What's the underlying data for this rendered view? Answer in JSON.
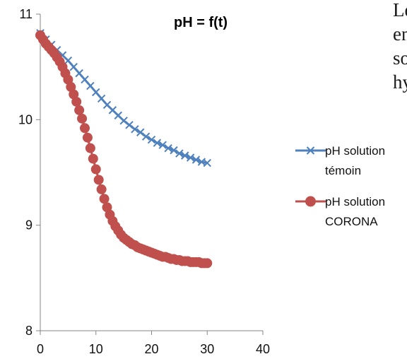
{
  "chart_data": {
    "type": "line",
    "title": "pH = f(t)",
    "xlabel": "",
    "ylabel": "",
    "xlim": [
      0,
      40
    ],
    "ylim": [
      8,
      11
    ],
    "x_ticks": [
      0,
      10,
      20,
      30,
      40
    ],
    "y_ticks": [
      8,
      9,
      10,
      11
    ],
    "grid": false,
    "legend_position": "right",
    "series": [
      {
        "name_lines": [
          "pH solution",
          "témoin"
        ],
        "color": "#4f81bd",
        "marker": "x",
        "x": [
          0,
          1,
          2,
          3,
          4,
          5,
          6,
          7,
          8,
          9,
          10,
          11,
          12,
          13,
          14,
          15,
          16,
          17,
          18,
          19,
          20,
          21,
          22,
          23,
          24,
          25,
          26,
          27,
          28,
          29,
          30
        ],
        "y": [
          10.82,
          10.76,
          10.71,
          10.66,
          10.61,
          10.56,
          10.5,
          10.44,
          10.38,
          10.32,
          10.26,
          10.2,
          10.14,
          10.09,
          10.04,
          9.99,
          9.95,
          9.91,
          9.88,
          9.84,
          9.81,
          9.78,
          9.76,
          9.73,
          9.71,
          9.68,
          9.66,
          9.64,
          9.62,
          9.6,
          9.59
        ]
      },
      {
        "name_lines": [
          "pH solution",
          "CORONA"
        ],
        "color": "#c0504d",
        "marker": "circle",
        "x": [
          0,
          0.5,
          1,
          1.5,
          2,
          2.5,
          3,
          3.5,
          4,
          4.5,
          5,
          5.5,
          6,
          6.5,
          7,
          7.5,
          8,
          8.5,
          9,
          9.5,
          10,
          10.5,
          11,
          11.5,
          12,
          12.5,
          13,
          13.5,
          14,
          14.5,
          15,
          15.5,
          16,
          16.5,
          17,
          17.5,
          18,
          18.5,
          19,
          19.5,
          20,
          20.5,
          21,
          21.5,
          22,
          22.5,
          23,
          23.5,
          24,
          24.5,
          25,
          25.5,
          26,
          26.5,
          27,
          27.5,
          28,
          28.5,
          29,
          29.5,
          30
        ],
        "y": [
          10.8,
          10.76,
          10.72,
          10.69,
          10.66,
          10.63,
          10.59,
          10.55,
          10.5,
          10.44,
          10.38,
          10.31,
          10.24,
          10.17,
          10.09,
          10.01,
          9.92,
          9.83,
          9.73,
          9.63,
          9.53,
          9.43,
          9.34,
          9.25,
          9.17,
          9.1,
          9.04,
          8.99,
          8.95,
          8.91,
          8.88,
          8.86,
          8.84,
          8.82,
          8.81,
          8.79,
          8.78,
          8.77,
          8.76,
          8.75,
          8.74,
          8.73,
          8.72,
          8.71,
          8.7,
          8.7,
          8.69,
          8.68,
          8.68,
          8.67,
          8.67,
          8.66,
          8.66,
          8.66,
          8.65,
          8.65,
          8.65,
          8.65,
          8.64,
          8.64,
          8.64
        ]
      }
    ]
  },
  "page_text": {
    "line1": "Le",
    "line2": "en",
    "line3": "so",
    "line4": "hy"
  }
}
